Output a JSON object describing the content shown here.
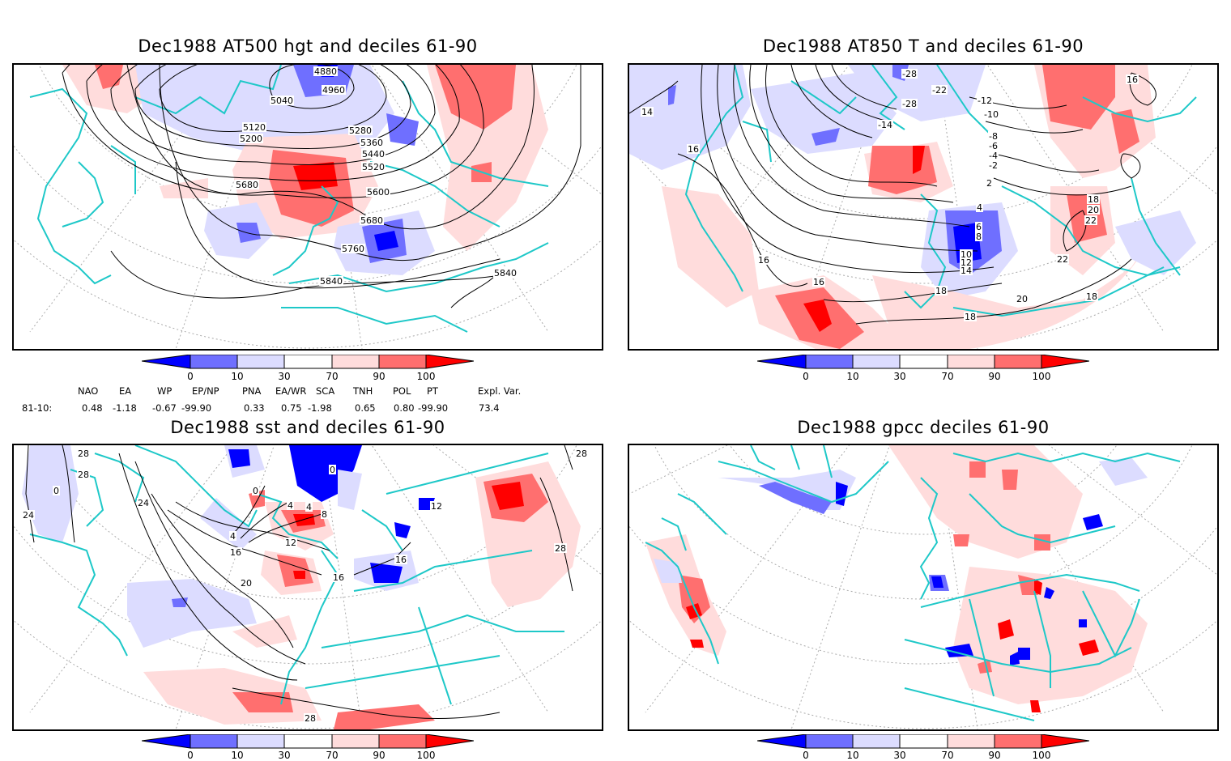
{
  "colors": {
    "below_0": "#0000ff",
    "d0_10": "#6f6fff",
    "d10_30": "#dcdcff",
    "d30_70": "#ffffff",
    "d70_90": "#ffdcdc",
    "d90_100": "#ff6f6f",
    "above_100": "#ff0000",
    "coast": "#1ec8c8",
    "contour": "#000000",
    "grid": "#aaaaaa"
  },
  "chart_data": [
    {
      "type": "heatmap",
      "title": "Dec1988 AT500 hgt and deciles 61-90",
      "contour_labels": [
        "4880",
        "4960",
        "5040",
        "5120",
        "5200",
        "5280",
        "5360",
        "5440",
        "5520",
        "5600",
        "5680",
        "5680",
        "5760",
        "5840",
        "5840"
      ],
      "colorbar": {
        "ticks": [
          "0",
          "10",
          "30",
          "70",
          "90",
          "100"
        ],
        "levels": [
          0,
          10,
          30,
          70,
          90,
          100
        ]
      }
    },
    {
      "type": "heatmap",
      "title": "Dec1988 AT850 T and deciles 61-90",
      "contour_labels": [
        "-28",
        "-22",
        "-28",
        "-12",
        "-10",
        "-14",
        "-8",
        "-6",
        "-4",
        "-2",
        "2",
        "4",
        "6",
        "8",
        "10",
        "12",
        "14",
        "14",
        "16",
        "16",
        "16",
        "16",
        "18",
        "18",
        "18",
        "18",
        "20",
        "20",
        "22",
        "22"
      ],
      "colorbar": {
        "ticks": [
          "0",
          "10",
          "30",
          "70",
          "90",
          "100"
        ],
        "levels": [
          0,
          10,
          30,
          70,
          90,
          100
        ]
      }
    },
    {
      "type": "heatmap",
      "title": "Dec1988 sst and deciles 61-90",
      "contour_labels": [
        "28",
        "28",
        "24",
        "24",
        "0",
        "0",
        "0",
        "4",
        "4",
        "4",
        "8",
        "12",
        "16",
        "16",
        "16",
        "20",
        "28",
        "28",
        "28",
        "12"
      ],
      "colorbar": {
        "ticks": [
          "0",
          "10",
          "30",
          "70",
          "90",
          "100"
        ],
        "levels": [
          0,
          10,
          30,
          70,
          90,
          100
        ]
      }
    },
    {
      "type": "heatmap",
      "title": "Dec1988 gpcc deciles 61-90",
      "contour_labels": [],
      "colorbar": {
        "ticks": [
          "0",
          "10",
          "30",
          "70",
          "90",
          "100"
        ],
        "levels": [
          0,
          10,
          30,
          70,
          90,
          100
        ]
      }
    }
  ],
  "indices": {
    "headers": [
      "NAO",
      "EA",
      "WP",
      "EP/NP",
      "PNA",
      "EA/WR",
      "SCA",
      "TNH",
      "POL",
      "PT",
      "Expl. Var."
    ],
    "row_label": "81-10:",
    "values": [
      "0.48",
      "-1.18",
      "-0.67",
      "-99.90",
      "0.33",
      "0.75",
      "-1.98",
      "0.65",
      "0.80",
      "-99.90",
      "73.4"
    ]
  }
}
